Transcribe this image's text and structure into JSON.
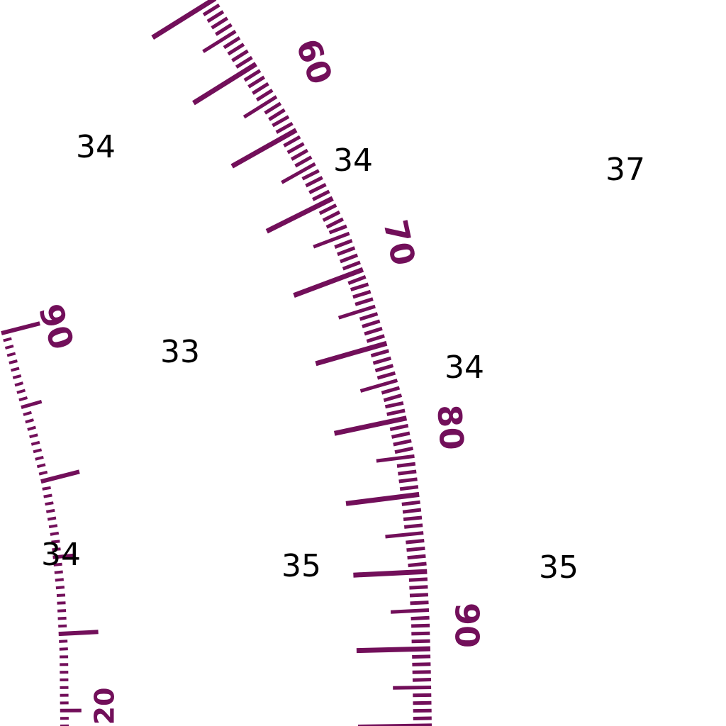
{
  "colors": {
    "scale": "#720f5a",
    "sounding": "#000000",
    "background": "#ffffff"
  },
  "soundings": [
    "34",
    "34",
    "37",
    "33",
    "34",
    "34",
    "35",
    "35"
  ],
  "scale_labels": [
    "60",
    "70",
    "80",
    "90",
    "90",
    "20"
  ]
}
